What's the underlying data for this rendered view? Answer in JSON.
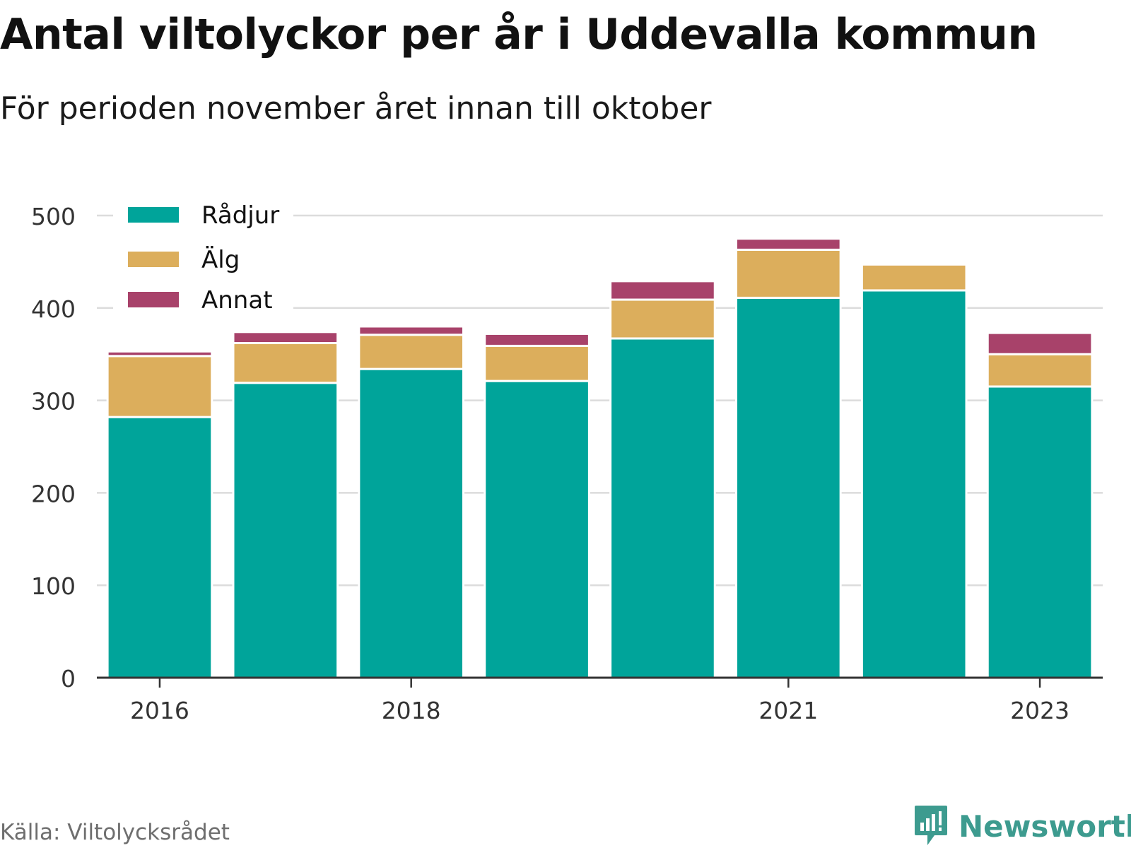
{
  "chart_data": {
    "type": "bar",
    "stacked": true,
    "title": "Antal viltolyckor per år i Uddevalla kommun",
    "subtitle": "För perioden november året innan till oktober",
    "categories": [
      "2016",
      "2017",
      "2018",
      "2019",
      "2020",
      "2021",
      "2022",
      "2023"
    ],
    "xtick_labels": [
      "2016",
      "",
      "2018",
      "",
      "",
      "2021",
      "",
      "2023"
    ],
    "series": [
      {
        "name": "Rådjur",
        "color": "#00a49a",
        "values": [
          282,
          319,
          334,
          321,
          367,
          411,
          419,
          315
        ]
      },
      {
        "name": "Älg",
        "color": "#dcae5c",
        "values": [
          66,
          43,
          37,
          38,
          42,
          52,
          28,
          35
        ]
      },
      {
        "name": "Annat",
        "color": "#a8426a",
        "values": [
          5,
          12,
          9,
          13,
          20,
          12,
          0,
          23
        ]
      }
    ],
    "ylim": [
      0,
      500
    ],
    "yticks": [
      0,
      100,
      200,
      300,
      400,
      500
    ],
    "grid": true,
    "legend": "top-left",
    "source": "Källa: Viltolycksrådet"
  },
  "branding": {
    "name": "Newsworthy",
    "icon": "newsworthy-logo-icon",
    "color": "#3d9b8f"
  }
}
